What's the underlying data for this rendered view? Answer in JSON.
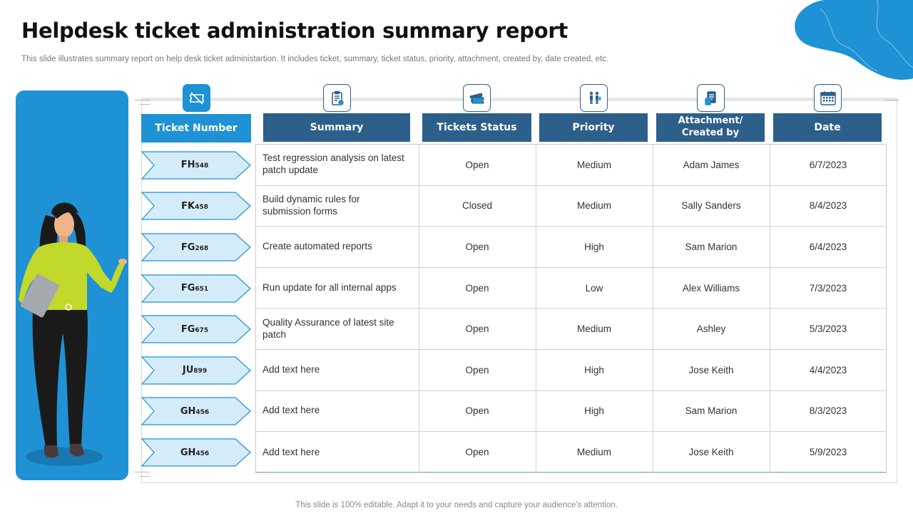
{
  "header": {
    "title": "Helpdesk ticket administration summary report",
    "subtitle": "This slide illustrates summary report on help desk ticket administartion. It includes ticket, summary, ticket status, priority, attachment, created by,  date created, etc."
  },
  "footer": "This slide is 100% editable. Adapt it to your needs and capture your audience's attention.",
  "colors": {
    "accent": "#1e92d4",
    "header_dark": "#2d5f8b",
    "ticket_fill": "#d4ecfa"
  },
  "columns": [
    {
      "label": "Ticket Number",
      "icon": "ticket-off-icon"
    },
    {
      "label": "Summary",
      "icon": "clipboard-check-icon"
    },
    {
      "label": "Tickets Status",
      "icon": "ticket-icon"
    },
    {
      "label": "Priority",
      "icon": "priority-people-icon"
    },
    {
      "label": "Attachment/ Created by",
      "icon": "document-attachment-icon"
    },
    {
      "label": "Date",
      "icon": "calendar-icon"
    }
  ],
  "rows": [
    {
      "ticket_prefix": "FH",
      "ticket_num": "548",
      "summary": "Test regression  analysis on latest patch update",
      "status": "Open",
      "priority": "Medium",
      "created_by": "Adam James",
      "date": "6/7/2023"
    },
    {
      "ticket_prefix": "FK",
      "ticket_num": "458",
      "summary": "Build dynamic rules for submission forms",
      "status": "Closed",
      "priority": "Medium",
      "created_by": "Sally Sanders",
      "date": "8/4/2023"
    },
    {
      "ticket_prefix": "FG",
      "ticket_num": "268",
      "summary": "Create automated  reports",
      "status": "Open",
      "priority": "High",
      "created_by": "Sam Marion",
      "date": "6/4/2023"
    },
    {
      "ticket_prefix": "FG",
      "ticket_num": "651",
      "summary": "Run update for all internal apps",
      "status": "Open",
      "priority": "Low",
      "created_by": "Alex Williams",
      "date": "7/3/2023"
    },
    {
      "ticket_prefix": "FG",
      "ticket_num": "675",
      "summary": "Quality Assurance of latest site patch",
      "status": "Open",
      "priority": "Medium",
      "created_by": "Ashley",
      "date": "5/3/2023"
    },
    {
      "ticket_prefix": "JU",
      "ticket_num": "899",
      "summary": "Add text here",
      "status": "Open",
      "priority": "High",
      "created_by": "Jose Keith",
      "date": "4/4/2023"
    },
    {
      "ticket_prefix": "GH",
      "ticket_num": "456",
      "summary": "Add text here",
      "status": "Open",
      "priority": "High",
      "created_by": "Sam Marion",
      "date": "8/3/2023"
    },
    {
      "ticket_prefix": "GH",
      "ticket_num": "456",
      "summary": "Add text here",
      "status": "Open",
      "priority": "Medium",
      "created_by": "Jose Keith",
      "date": "5/9/2023"
    }
  ]
}
